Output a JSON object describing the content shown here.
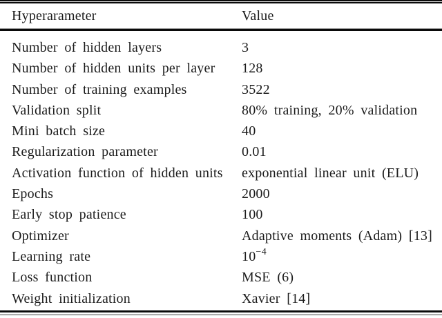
{
  "page": {
    "background": "#ffffff",
    "text_color": "#1c1c1c",
    "rule_color": "#0a0a0a"
  },
  "table": {
    "columns": [
      {
        "label": "Hyperarameter"
      },
      {
        "label": "Value"
      }
    ],
    "rows": [
      {
        "param": "Number of hidden layers",
        "value": "3"
      },
      {
        "param": "Number of hidden units per layer",
        "value": "128"
      },
      {
        "param": "Number of training examples",
        "value": "3522"
      },
      {
        "param": "Validation split",
        "value": "80% training, 20% validation"
      },
      {
        "param": "Mini batch size",
        "value": "40"
      },
      {
        "param": "Regularization parameter",
        "value": "0.01"
      },
      {
        "param": "Activation function of hidden units",
        "value": "exponential linear unit (ELU)"
      },
      {
        "param": "Epochs",
        "value": "2000"
      },
      {
        "param": "Early stop patience",
        "value": "100"
      },
      {
        "param": "Optimizer",
        "value": "Adaptive moments (Adam) [13]"
      },
      {
        "param": "Learning rate",
        "value_base": "10",
        "value_sup": "−4"
      },
      {
        "param": "Loss function",
        "value": "MSE (6)"
      },
      {
        "param": "Weight initialization",
        "value": "Xavier [14]"
      }
    ]
  }
}
